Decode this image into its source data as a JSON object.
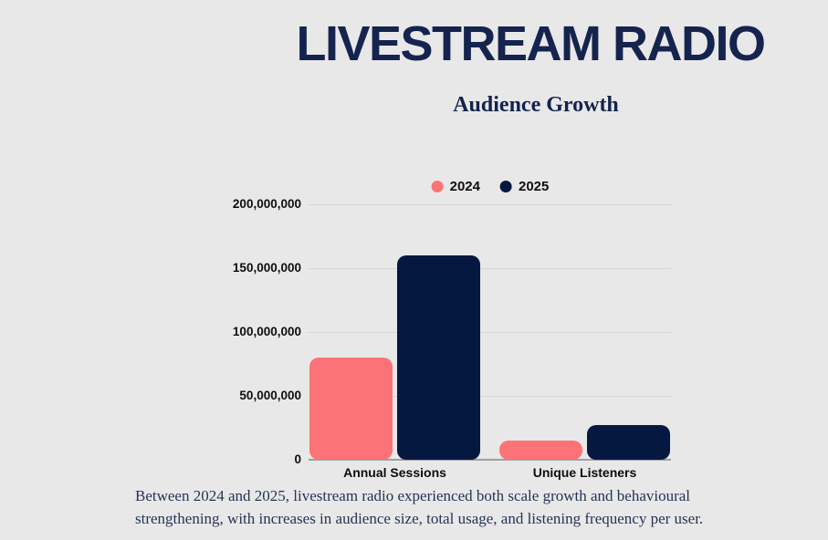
{
  "header": {
    "title": "LIVESTREAM RADIO",
    "subtitle": "Audience Growth"
  },
  "chart_data": {
    "type": "bar",
    "title": "Audience Growth",
    "categories": [
      "Annual Sessions",
      "Unique Listeners"
    ],
    "series": [
      {
        "name": "2024",
        "color": "#fc7377",
        "values": [
          80000000,
          15000000
        ]
      },
      {
        "name": "2025",
        "color": "#051840",
        "values": [
          160000000,
          27000000
        ]
      }
    ],
    "ylim": [
      0,
      200000000
    ],
    "yticks": [
      0,
      50000000,
      100000000,
      150000000,
      200000000
    ],
    "ytick_labels": [
      "0",
      "50,000,000",
      "100,000,000",
      "150,000,000",
      "200,000,000"
    ],
    "grid": true,
    "legend_position": "top-center"
  },
  "caption": {
    "text": "Between 2024 and 2025, livestream radio experienced both scale growth and behavioural strengthening, with increases in audience size, total usage, and listening frequency per user."
  },
  "colors": {
    "background": "#e9e8e8",
    "title_text": "#15244e",
    "subtitle_text": "#14234e",
    "caption_text": "#243455",
    "tick_text": "#0e0e0e",
    "gridline": "#d5d5d6",
    "axis_line": "#9fa0a4",
    "series_2024": "#fc7377",
    "series_2025": "#051840"
  }
}
